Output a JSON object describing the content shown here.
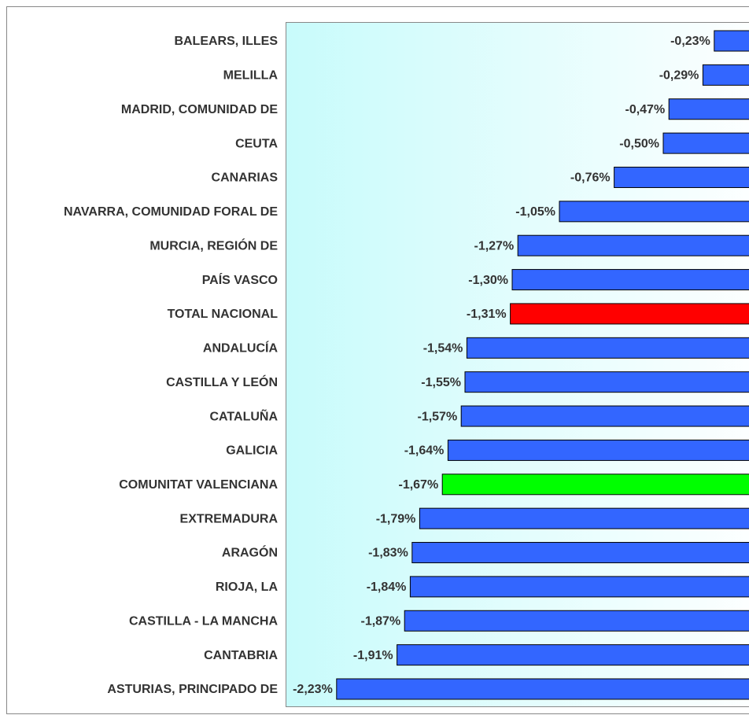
{
  "chart_data": {
    "type": "barh",
    "categories": [
      "BALEARS, ILLES",
      "MELILLA",
      "MADRID, COMUNIDAD DE",
      "CEUTA",
      "CANARIAS",
      "NAVARRA, COMUNIDAD FORAL DE",
      "MURCIA, REGIÓN DE",
      "PAÍS VASCO",
      "TOTAL NACIONAL",
      "ANDALUCÍA",
      "CASTILLA  Y LEÓN",
      "CATALUÑA",
      "GALICIA",
      "COMUNITAT VALENCIANA",
      "EXTREMADURA",
      "ARAGÓN",
      "RIOJA, LA",
      "CASTILLA - LA MANCHA",
      "CANTABRIA",
      "ASTURIAS, PRINCIPADO DE"
    ],
    "values": [
      -0.23,
      -0.29,
      -0.47,
      -0.5,
      -0.76,
      -1.05,
      -1.27,
      -1.3,
      -1.31,
      -1.54,
      -1.55,
      -1.57,
      -1.64,
      -1.67,
      -1.79,
      -1.83,
      -1.84,
      -1.87,
      -1.91,
      -2.23
    ],
    "value_labels": [
      "-0,23%",
      "-0,29%",
      "-0,47%",
      "-0,50%",
      "-0,76%",
      "-1,05%",
      "-1,27%",
      "-1,30%",
      "-1,31%",
      "-1,54%",
      "-1,55%",
      "-1,57%",
      "-1,64%",
      "-1,67%",
      "-1,79%",
      "-1,83%",
      "-1,84%",
      "-1,87%",
      "-1,91%",
      "-2,23%"
    ],
    "colors": [
      "#3366ff",
      "#3366ff",
      "#3366ff",
      "#3366ff",
      "#3366ff",
      "#3366ff",
      "#3366ff",
      "#3366ff",
      "#ff0000",
      "#3366ff",
      "#3366ff",
      "#3366ff",
      "#3366ff",
      "#00ff00",
      "#3366ff",
      "#3366ff",
      "#3366ff",
      "#3366ff",
      "#3366ff",
      "#3366ff"
    ],
    "xlim": [
      -2.5,
      0
    ]
  }
}
